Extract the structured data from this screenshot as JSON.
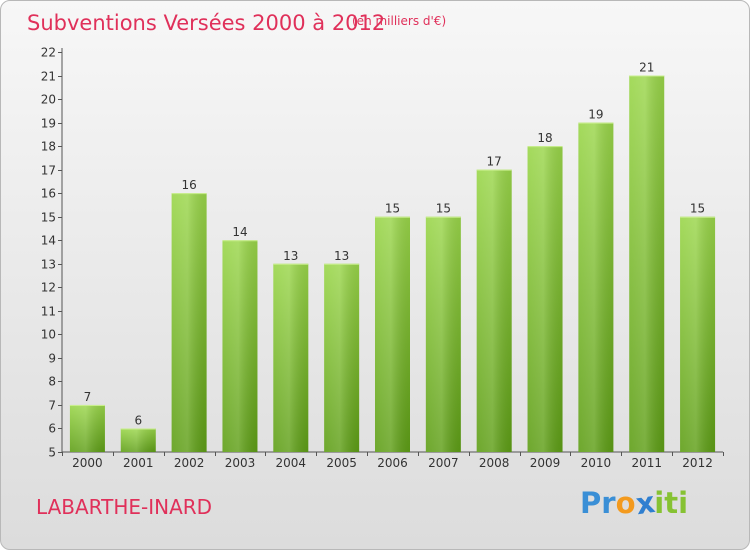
{
  "chart_data": {
    "type": "bar",
    "title": "Subventions Versées 2000 à 2012",
    "subtitle": "(en milliers d'€)",
    "categories": [
      "2000",
      "2001",
      "2002",
      "2003",
      "2004",
      "2005",
      "2006",
      "2007",
      "2008",
      "2009",
      "2010",
      "2011",
      "2012"
    ],
    "values": [
      7,
      6,
      16,
      14,
      13,
      13,
      15,
      15,
      17,
      18,
      19,
      21,
      15
    ],
    "xlabel": "",
    "ylabel": "",
    "ylim": [
      5,
      22
    ],
    "yticks": [
      5,
      6,
      7,
      8,
      9,
      10,
      11,
      12,
      13,
      14,
      15,
      16,
      17,
      18,
      19,
      20,
      21,
      22
    ],
    "grid": false,
    "bar_color": "#7cbc28"
  },
  "commune": "LABARTHE-INARD",
  "logo": {
    "text": "Proxiti",
    "letters": [
      {
        "ch": "P",
        "color": "#3a8fd6"
      },
      {
        "ch": "r",
        "color": "#3a8fd6"
      },
      {
        "ch": "o",
        "color": "#f39a1e"
      },
      {
        "ch": "x",
        "color": "#2f7fd0"
      },
      {
        "ch": "i",
        "color": "#86c232"
      },
      {
        "ch": "t",
        "color": "#86c232"
      },
      {
        "ch": "i",
        "color": "#86c232"
      }
    ]
  }
}
